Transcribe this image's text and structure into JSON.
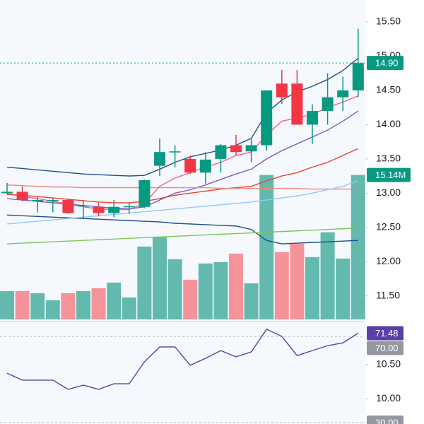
{
  "chart_data": {
    "type": "candlestick",
    "ylim": [
      9.63,
      15.82
    ],
    "yticks": [
      {
        "value": 15.5,
        "label": "15.50"
      },
      {
        "value": 15,
        "label": "15.00"
      },
      {
        "value": 14.5,
        "label": "14.50"
      },
      {
        "value": 14,
        "label": "14.00"
      },
      {
        "value": 13.5,
        "label": "13.50"
      },
      {
        "value": 13,
        "label": "13.00"
      },
      {
        "value": 12.5,
        "label": "12.50"
      },
      {
        "value": 12,
        "label": "12.00"
      },
      {
        "value": 11.5,
        "label": "11.50"
      },
      {
        "value": 10.5,
        "label": "10.50"
      },
      {
        "value": 10,
        "label": "10.00"
      }
    ],
    "up_color": "#089981",
    "down_color": "#f23645",
    "open": [
      13.0,
      13.02,
      12.88,
      12.89,
      12.9,
      12.81,
      12.8,
      12.71,
      12.8,
      12.8,
      13.4,
      13.6,
      13.5,
      13.3,
      13.5,
      13.7,
      13.61,
      13.7,
      14.6,
      14.6,
      14.0,
      14.2,
      14.4,
      14.5
    ],
    "high": [
      13.15,
      13.1,
      12.95,
      12.92,
      12.92,
      12.9,
      12.86,
      12.9,
      12.86,
      13.2,
      13.8,
      13.7,
      13.55,
      13.6,
      13.72,
      13.85,
      13.8,
      14.5,
      14.8,
      14.8,
      14.3,
      14.75,
      14.7,
      15.4
    ],
    "low": [
      12.98,
      12.88,
      12.72,
      12.72,
      12.7,
      12.62,
      12.66,
      12.65,
      12.7,
      12.78,
      13.25,
      13.38,
      13.28,
      13.14,
      13.3,
      13.55,
      13.45,
      13.62,
      14.3,
      14.0,
      13.72,
      14.0,
      14.2,
      14.4
    ],
    "close": [
      13.02,
      12.9,
      12.9,
      12.9,
      12.71,
      12.82,
      12.71,
      12.8,
      12.81,
      13.19,
      13.6,
      13.61,
      13.3,
      13.49,
      13.7,
      13.6,
      13.7,
      14.5,
      14.4,
      14.0,
      14.2,
      14.4,
      14.5,
      14.9
    ],
    "price_label": "14.90",
    "lines": [
      {
        "color": "#1f4e8c",
        "values": [
          13.38,
          13.36,
          13.34,
          13.32,
          13.3,
          13.28,
          13.27,
          13.26,
          13.25,
          13.26,
          13.35,
          13.45,
          13.53,
          13.58,
          13.63,
          13.7,
          13.8,
          14.17,
          14.36,
          14.48,
          14.56,
          14.66,
          14.79,
          14.97
        ]
      },
      {
        "color": "#1f4e8c",
        "values": [
          12.68,
          12.67,
          12.66,
          12.65,
          12.64,
          12.63,
          12.62,
          12.61,
          12.6,
          12.59,
          12.58,
          12.56,
          12.55,
          12.54,
          12.53,
          12.52,
          12.47,
          12.31,
          12.26,
          12.27,
          12.28,
          12.29,
          12.3,
          12.31
        ]
      },
      {
        "color": "#f06292",
        "values": [
          13.0,
          12.95,
          12.92,
          12.88,
          12.84,
          12.8,
          12.77,
          12.76,
          12.76,
          12.85,
          13.1,
          13.22,
          13.3,
          13.38,
          13.45,
          13.55,
          13.6,
          13.85,
          14.05,
          14.1,
          14.15,
          14.25,
          14.33,
          14.42
        ]
      },
      {
        "color": "#7e57c2",
        "values": [
          12.92,
          12.9,
          12.88,
          12.86,
          12.84,
          12.82,
          12.8,
          12.78,
          12.77,
          12.8,
          12.9,
          13.0,
          13.05,
          13.12,
          13.2,
          13.28,
          13.35,
          13.5,
          13.62,
          13.72,
          13.82,
          13.92,
          14.05,
          14.2
        ]
      },
      {
        "color": "#e8452c",
        "values": [
          12.98,
          12.97,
          12.95,
          12.93,
          12.91,
          12.89,
          12.87,
          12.86,
          12.86,
          12.88,
          12.92,
          12.97,
          13.0,
          13.03,
          13.06,
          13.08,
          13.1,
          13.18,
          13.25,
          13.3,
          13.38,
          13.45,
          13.55,
          13.65
        ]
      },
      {
        "color": "#ef8a7a",
        "values": [
          13.12,
          13.11,
          13.1,
          13.09,
          13.09,
          13.08,
          13.08,
          13.08,
          13.08,
          13.08,
          13.08,
          13.08,
          13.08,
          13.08,
          13.07,
          13.07,
          13.07,
          13.07,
          13.07,
          13.07,
          13.06,
          13.06,
          13.06,
          13.06
        ]
      },
      {
        "color": "#90caf9",
        "values": [
          12.55,
          12.57,
          12.59,
          12.61,
          12.63,
          12.65,
          12.67,
          12.69,
          12.71,
          12.73,
          12.75,
          12.77,
          12.79,
          12.81,
          12.83,
          12.85,
          12.87,
          12.9,
          12.93,
          12.96,
          13.0,
          13.05,
          13.1,
          13.18
        ]
      },
      {
        "color": "#7cc85a",
        "values": [
          12.26,
          12.27,
          12.28,
          12.29,
          12.3,
          12.31,
          12.32,
          12.33,
          12.34,
          12.35,
          12.36,
          12.37,
          12.38,
          12.39,
          12.4,
          12.41,
          12.42,
          12.43,
          12.44,
          12.45,
          12.46,
          12.47,
          12.48,
          12.49
        ]
      }
    ],
    "volume": {
      "up_color": "#63b9ae",
      "down_color": "#f4939a",
      "vlim": [
        0,
        20
      ],
      "values": [
        2.97,
        2.97,
        2.75,
        2.0,
        2.75,
        2.97,
        3.27,
        3.86,
        2.3,
        7.64,
        8.61,
        6.31,
        4.16,
        5.86,
        6.01,
        6.9,
        3.78,
        15.14,
        7.05,
        7.94,
        6.53,
        9.13,
        6.38,
        15.14
      ],
      "value_label": "15.14M"
    },
    "rsi": {
      "color": "#5b3fa8",
      "ylim": [
        29.34,
        75.25
      ],
      "values": [
        52.9,
        49.7,
        49.7,
        49.7,
        45.4,
        47.4,
        45.4,
        48.0,
        48.0,
        58.2,
        65.1,
        65.1,
        56.6,
        59.8,
        63.4,
        60.5,
        62.8,
        73.3,
        70.0,
        61.1,
        63.4,
        65.7,
        67.0,
        71.48
      ],
      "value_label": "71.48",
      "levels": [
        {
          "value": 70,
          "label": "70.00"
        },
        {
          "value": 30,
          "label": "30.00"
        }
      ]
    }
  }
}
